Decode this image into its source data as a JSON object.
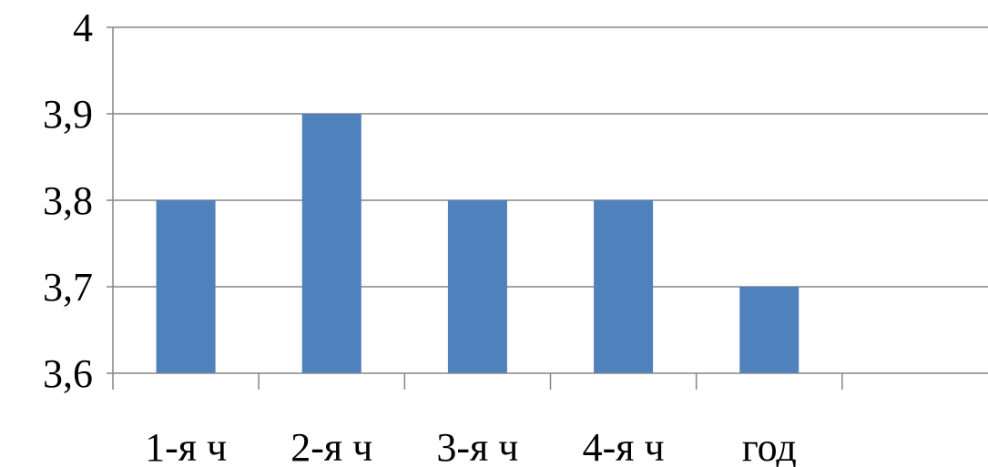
{
  "chart_data": {
    "type": "bar",
    "categories": [
      "1-я ч",
      "2-я ч",
      "3-я ч",
      "4-я ч",
      "год",
      ""
    ],
    "values": [
      3.8,
      3.9,
      3.8,
      3.8,
      3.7,
      null
    ],
    "y_tick_labels": [
      "3,6",
      "3,7",
      "3,8",
      "3,9",
      "4"
    ],
    "y_ticks": [
      3.6,
      3.7,
      3.8,
      3.9,
      4.0
    ],
    "ylim": [
      3.6,
      4.0
    ],
    "grid": true,
    "legend": "none",
    "bar_color": "#4f81bd",
    "grid_color": "#868686"
  }
}
